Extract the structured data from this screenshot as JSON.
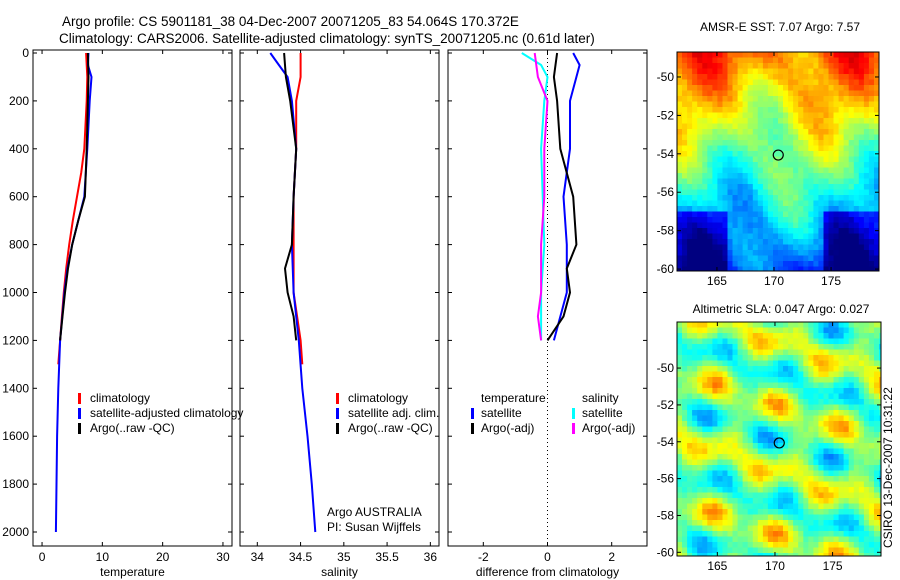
{
  "title": {
    "line1": "Argo profile: CS 5901181_38 04-Dec-2007 20071205_83 54.064S 170.372E",
    "line2": "Climatology: CARS2006. Satellite-adjusted climatology: synTS_20071205.nc (0.61d later)"
  },
  "footer_stamp": "CSIRO 13-Dec-2007 10:31:22",
  "colors": {
    "red": "#ff0000",
    "blue": "#0000ff",
    "black": "#000000",
    "cyan": "#00ffff",
    "magenta": "#ff00ff"
  },
  "chart_data": [
    {
      "type": "line",
      "id": "temp",
      "xlabel": "temperature",
      "ylabel": "",
      "xlim": [
        -1.5,
        31.5
      ],
      "ylim": [
        2000,
        0
      ],
      "xticks": [
        "0",
        "10",
        "20",
        "30"
      ],
      "xtick_values": [
        0,
        10,
        20,
        30
      ],
      "yticks": [
        "0",
        "200",
        "400",
        "600",
        "800",
        "1000",
        "1200",
        "1400",
        "1600",
        "1800",
        "2000"
      ],
      "ytick_values": [
        0,
        200,
        400,
        600,
        800,
        1000,
        1200,
        1400,
        1600,
        1800,
        2000
      ],
      "legend": [
        "climatology",
        "satellite-adjusted climatology",
        "Argo(..raw -QC)"
      ],
      "series": [
        {
          "name": "climatology",
          "color": "red",
          "depth": [
            0,
            100,
            200,
            400,
            500,
            600,
            700,
            800,
            900,
            1000,
            1100,
            1200,
            1300
          ],
          "values": [
            7.3,
            7.5,
            7.4,
            7.0,
            6.5,
            5.8,
            5.1,
            4.5,
            4.0,
            3.6,
            3.3,
            3.0,
            2.7
          ]
        },
        {
          "name": "satellite-adjusted climatology",
          "color": "blue",
          "depth": [
            0,
            50,
            100,
            200,
            400,
            600,
            700,
            800,
            900,
            1000,
            1200,
            1400,
            1600,
            1800,
            2000
          ],
          "values": [
            7.7,
            7.6,
            8.2,
            7.9,
            7.5,
            7.0,
            6.0,
            5.0,
            4.2,
            3.7,
            3.0,
            2.7,
            2.5,
            2.4,
            2.3
          ]
        },
        {
          "name": "Argo(..raw -QC)",
          "color": "black",
          "depth": [
            0,
            100,
            200,
            400,
            600,
            700,
            800,
            900,
            1000,
            1100,
            1200
          ],
          "values": [
            7.6,
            7.7,
            7.6,
            7.4,
            7.1,
            6.0,
            5.0,
            4.3,
            3.8,
            3.4,
            3.0
          ]
        }
      ]
    },
    {
      "type": "line",
      "id": "sal",
      "xlabel": "salinity",
      "xlim": [
        33.8,
        36.1
      ],
      "ylim": [
        2000,
        0
      ],
      "xticks": [
        "34",
        "34.5",
        "35",
        "35.5",
        "36"
      ],
      "xtick_values": [
        34,
        34.5,
        35,
        35.5,
        36
      ],
      "legend": [
        "climatology",
        "satellite adj. clim.",
        "Argo(..raw -QC)"
      ],
      "annotation": [
        "Argo AUSTRALIA",
        "PI: Susan Wijffels"
      ],
      "series": [
        {
          "name": "climatology",
          "color": "red",
          "depth": [
            0,
            100,
            200,
            400,
            600,
            800,
            1000,
            1200,
            1300
          ],
          "values": [
            34.5,
            34.5,
            34.45,
            34.45,
            34.42,
            34.42,
            34.42,
            34.5,
            34.52
          ]
        },
        {
          "name": "satellite adj. clim.",
          "color": "blue",
          "depth": [
            0,
            50,
            100,
            200,
            400,
            600,
            800,
            1000,
            1200,
            1400,
            1600,
            1800,
            2000
          ],
          "values": [
            34.15,
            34.25,
            34.35,
            34.4,
            34.45,
            34.42,
            34.4,
            34.42,
            34.48,
            34.52,
            34.58,
            34.63,
            34.67
          ]
        },
        {
          "name": "Argo(..raw -QC)",
          "color": "black",
          "depth": [
            0,
            100,
            200,
            400,
            600,
            800,
            900,
            1000,
            1100,
            1200
          ],
          "values": [
            34.31,
            34.33,
            34.38,
            34.45,
            34.42,
            34.4,
            34.32,
            34.35,
            34.42,
            34.45
          ]
        }
      ]
    },
    {
      "type": "line",
      "id": "diff",
      "xlabel": "difference from climatology",
      "xlim": [
        -3.1,
        3.1
      ],
      "ylim": [
        2000,
        0
      ],
      "xticks": [
        "-2",
        "0",
        "2"
      ],
      "xtick_values": [
        -2,
        0,
        2
      ],
      "legend_headers": [
        "temperature",
        "salinity"
      ],
      "legend": [
        "satellite",
        "Argo(-adj)",
        "satellite",
        "Argo(-adj)"
      ],
      "series": [
        {
          "name": "temperature satellite",
          "color": "blue",
          "depth": [
            0,
            50,
            100,
            200,
            400,
            600,
            800,
            1000,
            1200
          ],
          "values": [
            0.8,
            1.0,
            0.9,
            0.7,
            0.7,
            0.5,
            0.6,
            0.6,
            0.2
          ]
        },
        {
          "name": "temperature Argo(-adj)",
          "color": "black",
          "depth": [
            0,
            100,
            200,
            400,
            600,
            800,
            900,
            1000,
            1100,
            1200
          ],
          "values": [
            0.3,
            0.2,
            0.3,
            0.4,
            0.8,
            0.9,
            0.6,
            0.7,
            0.5,
            0.0
          ]
        },
        {
          "name": "salinity satellite",
          "color": "cyan",
          "depth": [
            0,
            50,
            100,
            200,
            400,
            800,
            1000,
            1200
          ],
          "values": [
            -0.8,
            -0.2,
            0.0,
            -0.1,
            -0.2,
            -0.1,
            -0.2,
            -0.2
          ]
        },
        {
          "name": "salinity Argo(-adj)",
          "color": "magenta",
          "depth": [
            0,
            100,
            200,
            400,
            600,
            800,
            1000,
            1100,
            1200
          ],
          "values": [
            -0.4,
            -0.3,
            0.0,
            -0.1,
            -0.1,
            -0.2,
            -0.2,
            -0.3,
            -0.2
          ]
        }
      ]
    },
    {
      "type": "heatmap",
      "id": "sst",
      "title": "AMSR-E SST: 7.07 Argo: 7.57",
      "xlim": [
        161.5,
        179.2
      ],
      "ylim": [
        -48.7,
        -60.1
      ],
      "xticks": [
        "165",
        "170",
        "175"
      ],
      "xtick_values": [
        165,
        170,
        175
      ],
      "yticks": [
        "-50",
        "-52",
        "-54",
        "-56",
        "-58",
        "-60"
      ],
      "ytick_values": [
        -50,
        -52,
        -54,
        -56,
        -58,
        -60
      ],
      "marker": {
        "lon": 170.372,
        "lat": -54.064
      }
    },
    {
      "type": "heatmap",
      "id": "sla",
      "title": "Altimetric SLA: 0.047 Argo: 0.027",
      "xlim": [
        161.5,
        179.2
      ],
      "ylim": [
        -47.5,
        -60.2
      ],
      "xticks": [
        "165",
        "170",
        "175"
      ],
      "xtick_values": [
        165,
        170,
        175
      ],
      "yticks": [
        "-50",
        "-52",
        "-54",
        "-56",
        "-58",
        "-60"
      ],
      "ytick_values": [
        -50,
        -52,
        -54,
        -56,
        -58,
        -60
      ],
      "marker": {
        "lon": 170.372,
        "lat": -54.064
      }
    }
  ]
}
